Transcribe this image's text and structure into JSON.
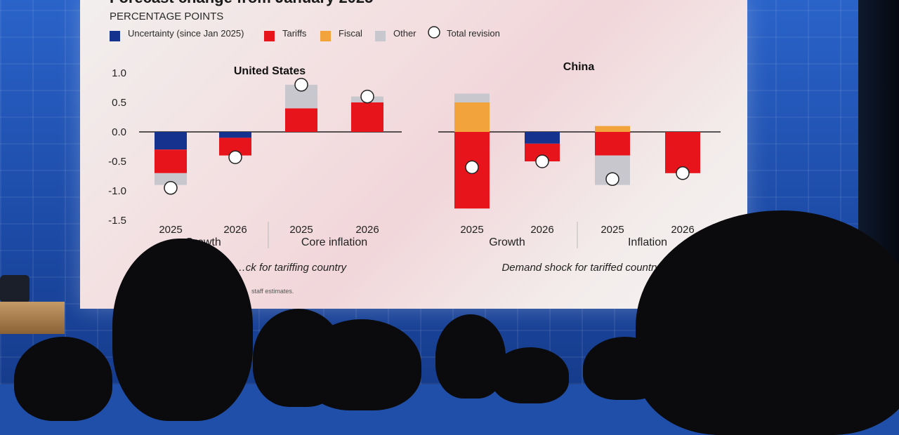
{
  "slide": {
    "title": "Forecast change from January 2025",
    "units": "PERCENTAGE POINTS",
    "source_partial": "staff estimates."
  },
  "legend": [
    {
      "label": "Uncertainty (since Jan 2025)",
      "color": "#16328f",
      "shape": "square"
    },
    {
      "label": "Tariffs",
      "color": "#e8141b",
      "shape": "square"
    },
    {
      "label": "Fiscal",
      "color": "#f2a33c",
      "shape": "square"
    },
    {
      "label": "Other",
      "color": "#c7c7cd",
      "shape": "square"
    },
    {
      "label": "Total revision",
      "color": "#ffffff",
      "shape": "circle"
    }
  ],
  "chart_data": [
    {
      "type": "bar",
      "stacked": true,
      "title": "United States",
      "categories": [
        "2025",
        "2026",
        "2025",
        "2026"
      ],
      "groups": [
        {
          "label": "Growth",
          "categories": [
            "2025",
            "2026"
          ]
        },
        {
          "label": "Core inflation",
          "categories": [
            "2025",
            "2026"
          ]
        }
      ],
      "subtitle": "…ck for tariffing country",
      "ylim": [
        -1.5,
        1.0
      ],
      "yticks": [
        "1.0",
        "0.5",
        "0.0",
        "-0.5",
        "-1.0",
        "-1.5"
      ],
      "series": [
        {
          "name": "Uncertainty (since Jan 2025)",
          "values": [
            -0.3,
            -0.1,
            0,
            0
          ]
        },
        {
          "name": "Tariffs",
          "values": [
            -0.4,
            -0.3,
            0.4,
            0.5
          ]
        },
        {
          "name": "Fiscal",
          "values": [
            0,
            0,
            0,
            0
          ]
        },
        {
          "name": "Other",
          "values": [
            -0.2,
            0,
            0.4,
            0.1
          ]
        }
      ],
      "total_revision": [
        -0.95,
        -0.43,
        0.8,
        0.6
      ]
    },
    {
      "type": "bar",
      "stacked": true,
      "title": "China",
      "categories": [
        "2025",
        "2026",
        "2025",
        "2026"
      ],
      "groups": [
        {
          "label": "Growth",
          "categories": [
            "2025",
            "2026"
          ]
        },
        {
          "label": "Inflation",
          "categories": [
            "2025",
            "2026"
          ]
        }
      ],
      "subtitle": "Demand shock for tariffed country",
      "ylim": [
        -1.5,
        1.0
      ],
      "series": [
        {
          "name": "Uncertainty (since Jan 2025)",
          "values": [
            0,
            -0.2,
            0,
            0
          ]
        },
        {
          "name": "Tariffs",
          "values": [
            -1.3,
            -0.3,
            -0.4,
            -0.7
          ]
        },
        {
          "name": "Fiscal",
          "values": [
            0.5,
            0,
            0.1,
            0
          ]
        },
        {
          "name": "Other",
          "values": [
            0.15,
            0,
            -0.5,
            0
          ]
        }
      ],
      "total_revision": [
        -0.6,
        -0.5,
        -0.8,
        -0.7
      ]
    }
  ]
}
